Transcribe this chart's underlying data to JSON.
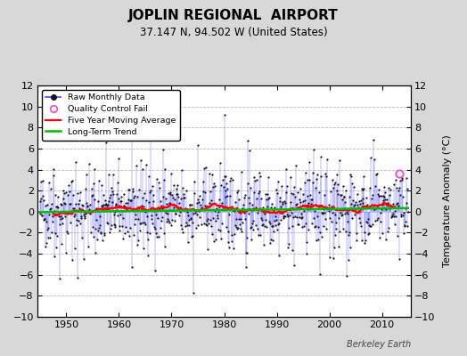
{
  "title": "JOPLIN REGIONAL  AIRPORT",
  "subtitle": "37.147 N, 94.502 W (United States)",
  "ylabel": "Temperature Anomaly (°C)",
  "credit": "Berkeley Earth",
  "xlim": [
    1944.5,
    2015.5
  ],
  "ylim": [
    -10,
    12
  ],
  "yticks": [
    -10,
    -8,
    -6,
    -4,
    -2,
    0,
    2,
    4,
    6,
    8,
    10,
    12
  ],
  "xticks": [
    1950,
    1960,
    1970,
    1980,
    1990,
    2000,
    2010
  ],
  "bg_color": "#d8d8d8",
  "plot_bg_color": "#ffffff",
  "raw_line_color": "#4444ff",
  "raw_dot_color": "#111111",
  "moving_avg_color": "#ff0000",
  "trend_color": "#00bb00",
  "qc_fail_color": "#ff44cc",
  "seed": 42,
  "start_year": 1945,
  "end_year": 2014,
  "qc_fail_t": 2013.2,
  "qc_fail_v": 3.6
}
